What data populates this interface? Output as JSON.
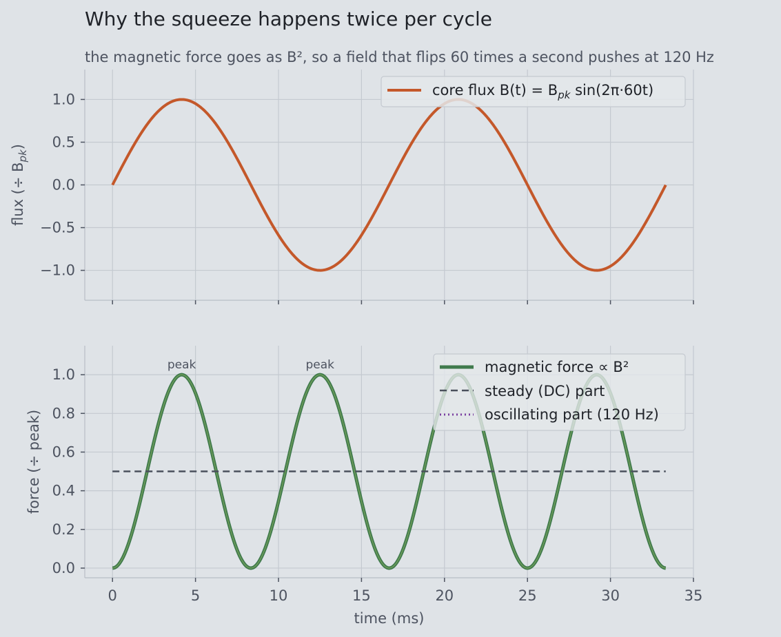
{
  "title": "Why the squeeze happens twice per cycle",
  "subtitle": "the magnetic force goes as B², so a field that flips 60 times a second pushes at 120 Hz",
  "colors": {
    "background": "#dfe3e7",
    "flux": "#c4582a",
    "force": "#3f7a4c",
    "force_under": "#6f9c5a",
    "dc": "#4a505c",
    "ac": "#7a3fa0",
    "grid": "#c4c9d0",
    "text": "#4d5360",
    "title": "#1f2228"
  },
  "chart_data": [
    {
      "type": "line",
      "name": "flux",
      "ylabel": "flux  (÷ B",
      "ylabel_sub": "pk",
      "ylabel_end": ")",
      "xlim": [
        -1.67,
        35
      ],
      "ylim": [
        -1.35,
        1.35
      ],
      "yticks": [
        1.0,
        0.5,
        0.0,
        -0.5,
        -1.0
      ],
      "ytick_labels": [
        "1.0",
        "0.5",
        "0.0",
        "−0.5",
        "−1.0"
      ],
      "xticks": [
        0,
        5,
        10,
        15,
        20,
        25,
        30,
        35
      ],
      "legend": {
        "location": "top-right",
        "entries": [
          {
            "label": "core flux  B(t) = B",
            "sub": "pk",
            "label_end": " sin(2π·60t)"
          }
        ]
      },
      "series": [
        {
          "name": "core flux",
          "formula": "sin(2π·60t)",
          "x_range": [
            0,
            33.33
          ],
          "x": [
            0,
            4.17,
            8.33,
            12.5,
            16.67,
            20.83,
            25.0,
            29.17,
            33.33
          ],
          "y": [
            0,
            1.0,
            0,
            -1.0,
            0,
            1.0,
            0,
            -1.0,
            0
          ]
        }
      ]
    },
    {
      "type": "line",
      "name": "force",
      "xlabel": "time  (ms)",
      "ylabel": "force  (÷ peak)",
      "xlim": [
        -1.67,
        35
      ],
      "ylim": [
        -0.05,
        1.15
      ],
      "yticks": [
        0.0,
        0.2,
        0.4,
        0.6,
        0.8,
        1.0
      ],
      "ytick_labels": [
        "0.0",
        "0.2",
        "0.4",
        "0.6",
        "0.8",
        "1.0"
      ],
      "xticks": [
        0,
        5,
        10,
        15,
        20,
        25,
        30,
        35
      ],
      "xtick_labels": [
        "0",
        "5",
        "10",
        "15",
        "20",
        "25",
        "30",
        "35"
      ],
      "legend": {
        "location": "top-right",
        "entries": [
          {
            "label": "magnetic force  ∝ B²"
          },
          {
            "label": "steady (DC) part"
          },
          {
            "label": "oscillating part  (120 Hz)"
          }
        ]
      },
      "series": [
        {
          "name": "magnetic force",
          "formula": "sin²(2π·60t)",
          "x_range": [
            0,
            33.33
          ],
          "x": [
            0,
            4.17,
            8.33,
            12.5,
            16.67,
            20.83,
            25.0,
            29.17,
            33.33
          ],
          "y": [
            0,
            1.0,
            0,
            1.0,
            0,
            1.0,
            0,
            1.0,
            0
          ]
        },
        {
          "name": "steady (DC) part",
          "x": [
            0,
            33.33
          ],
          "y": [
            0.5,
            0.5
          ]
        }
      ],
      "annotations": [
        {
          "text": "peak",
          "x": 4.17,
          "y": 1.0
        },
        {
          "text": "peak",
          "x": 12.5,
          "y": 1.0
        }
      ]
    }
  ]
}
